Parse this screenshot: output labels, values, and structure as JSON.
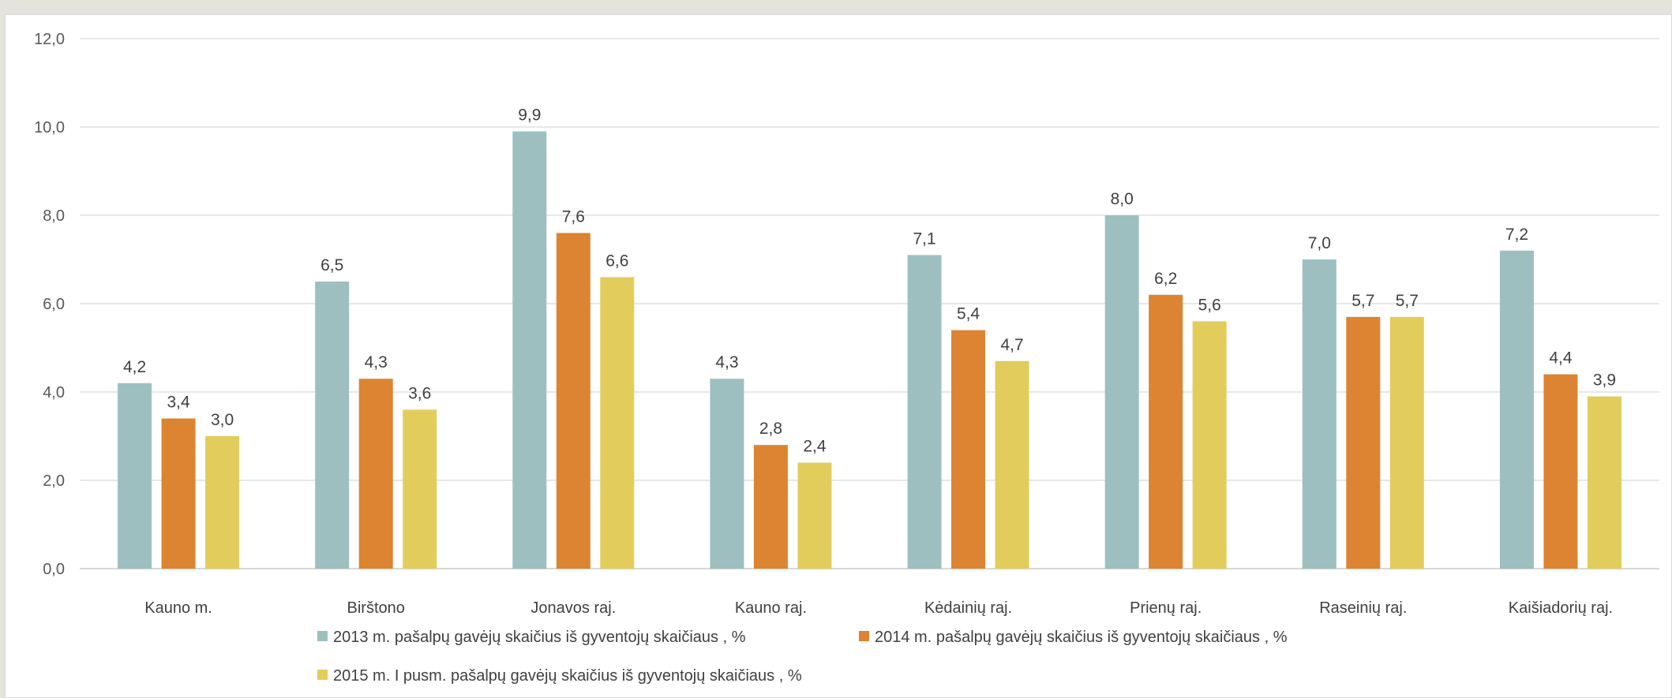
{
  "chart_data": {
    "type": "bar",
    "categories": [
      "Kauno m.",
      "Birštono",
      "Jonavos raj.",
      "Kauno raj.",
      "Kėdainių raj.",
      "Prienų raj.",
      "Raseinių raj.",
      "Kaišiadorių raj."
    ],
    "series": [
      {
        "name": "2013 m. pašalpų gavėjų skaičius iš  gyventojų skaičiaus , %",
        "color": "#9dbfbf",
        "values": [
          4.2,
          6.5,
          9.9,
          4.3,
          7.1,
          8.0,
          7.0,
          7.2
        ],
        "labels": [
          "4,2",
          "6,5",
          "9,9",
          "4,3",
          "7,1",
          "8,0",
          "7,0",
          "7,2"
        ]
      },
      {
        "name": "2014 m. pašalpų gavėjų skaičius iš  gyventojų skaičiaus , %",
        "color": "#dc8431",
        "values": [
          3.4,
          4.3,
          7.6,
          2.8,
          5.4,
          6.2,
          5.7,
          4.4
        ],
        "labels": [
          "3,4",
          "4,3",
          "7,6",
          "2,8",
          "5,4",
          "6,2",
          "5,7",
          "4,4"
        ]
      },
      {
        "name": "2015 m. I pusm. pašalpų gavėjų skaičius iš  gyventojų skaičiaus , %",
        "color": "#e2cc5c",
        "values": [
          3.0,
          3.6,
          6.6,
          2.4,
          4.7,
          5.6,
          5.7,
          3.9
        ],
        "labels": [
          "3,0",
          "3,6",
          "6,6",
          "2,4",
          "4,7",
          "5,6",
          "5,7",
          "3,9"
        ]
      }
    ],
    "yticks": [
      "0,0",
      "2,0",
      "4,0",
      "6,0",
      "8,0",
      "10,0",
      "12,0"
    ],
    "ylim": [
      0,
      12
    ],
    "grid": true,
    "legend_position": "bottom",
    "title": "",
    "xlabel": "",
    "ylabel": ""
  }
}
